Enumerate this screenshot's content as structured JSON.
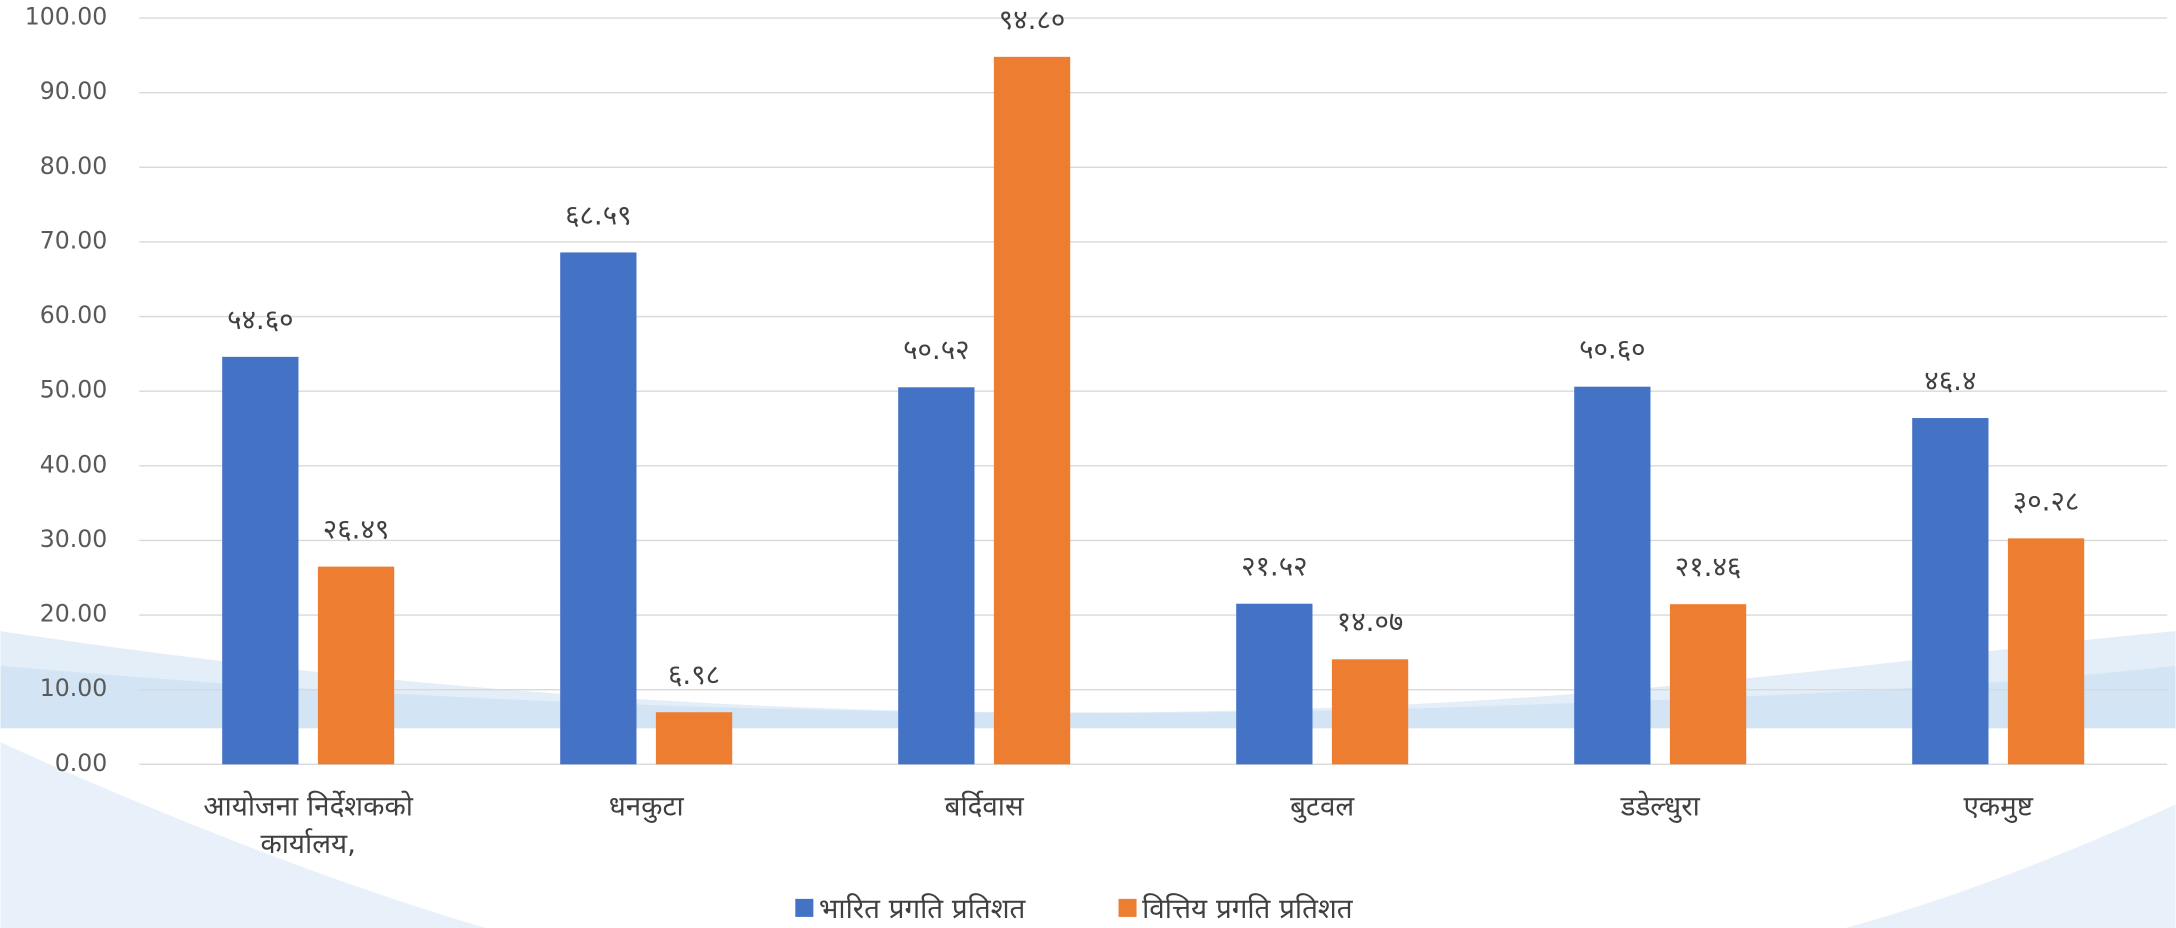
{
  "chart_data": {
    "type": "bar",
    "categories": [
      "आयोजना निर्देशकको कार्यालय,",
      "धनकुटा",
      "बर्दिवास",
      "बुटवल",
      "डडेल्धुरा",
      "एकमुष्ट"
    ],
    "series": [
      {
        "name": "भारित प्रगति प्रतिशत",
        "color": "#4472c4",
        "values": [
          54.6,
          68.59,
          50.52,
          21.52,
          50.6,
          46.4
        ],
        "value_labels": [
          "५४.६०",
          "६८.५९",
          "५०.५२",
          "२१.५२",
          "५०.६०",
          "४६.४"
        ]
      },
      {
        "name": "वित्तिय प्रगति प्रतिशत",
        "color": "#ed7d31",
        "values": [
          26.49,
          6.98,
          94.8,
          14.07,
          21.46,
          30.28
        ],
        "value_labels": [
          "२६.४९",
          "६.९८",
          "९४.८०",
          "१४.०७",
          "२१.४६",
          "३०.२८"
        ]
      }
    ],
    "ylim": [
      0,
      100
    ],
    "yticks": [
      {
        "value": 0,
        "label": "0.00"
      },
      {
        "value": 10,
        "label": "10.00"
      },
      {
        "value": 20,
        "label": "20.00"
      },
      {
        "value": 30,
        "label": "30.00"
      },
      {
        "value": 40,
        "label": "40.00"
      },
      {
        "value": 50,
        "label": "50.00"
      },
      {
        "value": 60,
        "label": "60.00"
      },
      {
        "value": 70,
        "label": "70.00"
      },
      {
        "value": 80,
        "label": "80.00"
      },
      {
        "value": 90,
        "label": "90.00"
      },
      {
        "value": 100,
        "label": "100.00"
      }
    ],
    "grid": true,
    "legend": "bottom"
  }
}
